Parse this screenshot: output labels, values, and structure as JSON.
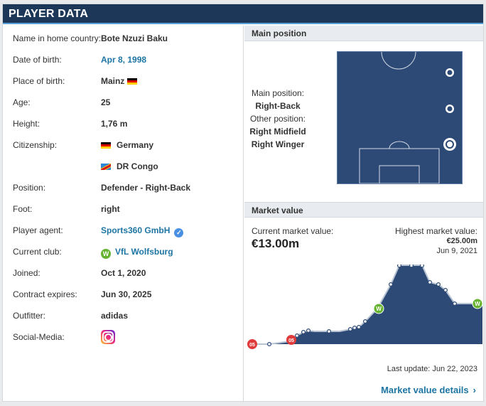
{
  "header": {
    "title": "PLAYER DATA"
  },
  "player": {
    "rows": [
      {
        "label": "Name in home country:",
        "value": "Bote Nzuzi Baku"
      },
      {
        "label": "Date of birth:",
        "value": "Apr 8, 1998"
      },
      {
        "label": "Place of birth:",
        "value": "Mainz"
      },
      {
        "label": "Age:",
        "value": "25"
      },
      {
        "label": "Height:",
        "value": "1,76 m"
      },
      {
        "label": "Citizenship:",
        "value": "Germany"
      },
      {
        "label": "",
        "value": "DR Congo"
      },
      {
        "label": "Position:",
        "value": "Defender - Right-Back"
      },
      {
        "label": "Foot:",
        "value": "right"
      },
      {
        "label": "Player agent:",
        "value": "Sports360 GmbH"
      },
      {
        "label": "Current club:",
        "value": "VfL Wolfsburg"
      },
      {
        "label": "Joined:",
        "value": "Oct 1, 2020"
      },
      {
        "label": "Contract expires:",
        "value": "Jun 30, 2025"
      },
      {
        "label": "Outfitter:",
        "value": "adidas"
      },
      {
        "label": "Social-Media:",
        "value": ""
      }
    ],
    "icons": {
      "verified": "verified-check-icon",
      "club": "vfl-wolfsburg-logo-icon",
      "social": "instagram-icon"
    }
  },
  "main_position": {
    "heading": "Main position",
    "main_label": "Main position:",
    "main_value": "Right-Back",
    "other_label": "Other position:",
    "other_values": [
      "Right Midfield",
      "Right Winger"
    ]
  },
  "market_value": {
    "heading": "Market value",
    "current_label": "Current market value:",
    "current_value": "€13.00m",
    "highest_label": "Highest market value:",
    "highest_value": "€25.00m",
    "highest_date": "Jun 9, 2021",
    "last_update": "Last update: Jun 22, 2023",
    "details_link": "Market value details",
    "colors": {
      "area": "#2c4a75",
      "line": "#b8c4d4",
      "accent": "#1d75a3"
    }
  }
}
